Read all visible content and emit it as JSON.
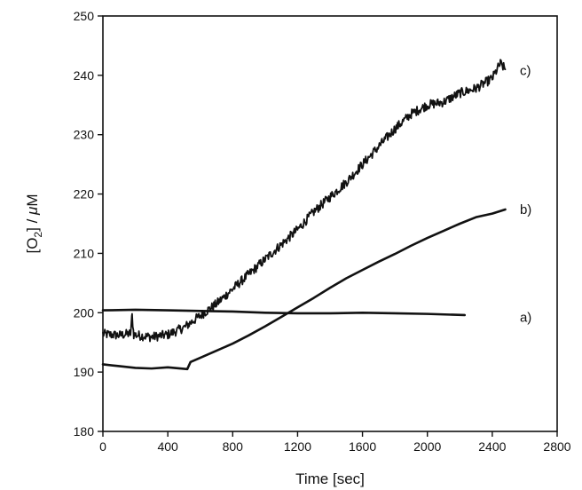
{
  "chart_data": {
    "type": "line",
    "xlabel": "Time [sec]",
    "ylabel": {
      "prefix": "[O",
      "sub": "2",
      "middle": "] / ",
      "mu": "μ",
      "unit": "M"
    },
    "xlim": [
      0,
      2800
    ],
    "ylim": [
      180,
      250
    ],
    "xticks": [
      0,
      400,
      800,
      1200,
      1600,
      2000,
      2400,
      2800
    ],
    "yticks": [
      180,
      190,
      200,
      210,
      220,
      230,
      240,
      250
    ],
    "grid": false,
    "legend": "none",
    "series": [
      {
        "name": "a)",
        "color": "#111111",
        "noisy": false,
        "points": [
          [
            0,
            200.4
          ],
          [
            200,
            200.5
          ],
          [
            400,
            200.4
          ],
          [
            600,
            200.3
          ],
          [
            800,
            200.2
          ],
          [
            1000,
            200.0
          ],
          [
            1200,
            199.9
          ],
          [
            1400,
            199.9
          ],
          [
            1600,
            200.0
          ],
          [
            1800,
            199.9
          ],
          [
            2000,
            199.8
          ],
          [
            2230,
            199.6
          ]
        ]
      },
      {
        "name": "b)",
        "color": "#111111",
        "noisy": false,
        "points": [
          [
            0,
            191.3
          ],
          [
            100,
            191.0
          ],
          [
            200,
            190.7
          ],
          [
            300,
            190.6
          ],
          [
            400,
            190.8
          ],
          [
            520,
            190.5
          ],
          [
            540,
            191.7
          ],
          [
            600,
            192.4
          ],
          [
            700,
            193.6
          ],
          [
            800,
            194.8
          ],
          [
            900,
            196.2
          ],
          [
            1000,
            197.7
          ],
          [
            1100,
            199.3
          ],
          [
            1200,
            200.9
          ],
          [
            1300,
            202.5
          ],
          [
            1400,
            204.2
          ],
          [
            1500,
            205.8
          ],
          [
            1600,
            207.2
          ],
          [
            1700,
            208.6
          ],
          [
            1800,
            209.9
          ],
          [
            1900,
            211.3
          ],
          [
            2000,
            212.6
          ],
          [
            2100,
            213.8
          ],
          [
            2200,
            215.0
          ],
          [
            2300,
            216.1
          ],
          [
            2400,
            216.7
          ],
          [
            2480,
            217.4
          ]
        ]
      },
      {
        "name": "c)",
        "color": "#111111",
        "noisy": true,
        "points": [
          [
            0,
            196.4
          ],
          [
            100,
            196.2
          ],
          [
            170,
            196.5
          ],
          [
            180,
            199.5
          ],
          [
            190,
            196.3
          ],
          [
            300,
            195.9
          ],
          [
            400,
            196.3
          ],
          [
            500,
            197.5
          ],
          [
            600,
            199.5
          ],
          [
            700,
            201.5
          ],
          [
            800,
            204.0
          ],
          [
            900,
            206.5
          ],
          [
            1000,
            209.0
          ],
          [
            1100,
            211.5
          ],
          [
            1200,
            214.0
          ],
          [
            1300,
            217.0
          ],
          [
            1400,
            219.5
          ],
          [
            1500,
            222.0
          ],
          [
            1600,
            225.0
          ],
          [
            1700,
            228.0
          ],
          [
            1800,
            231.0
          ],
          [
            1900,
            233.5
          ],
          [
            2000,
            235.0
          ],
          [
            2100,
            235.5
          ],
          [
            2200,
            237.0
          ],
          [
            2300,
            237.8
          ],
          [
            2400,
            239.5
          ],
          [
            2450,
            242.0
          ],
          [
            2480,
            241.0
          ]
        ]
      }
    ]
  }
}
